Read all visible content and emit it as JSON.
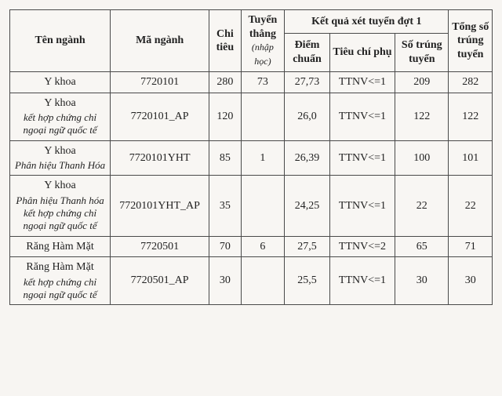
{
  "headers": {
    "name": "Tên ngành",
    "code": "Mã ngành",
    "quota": "Chi tiêu",
    "direct": "Tuyển thẳng",
    "direct_sub": "(nhập học)",
    "round1": "Kết quả xét tuyển đợt 1",
    "score": "Điểm chuẩn",
    "criteria": "Tiêu chí phụ",
    "passed": "Số trúng tuyển",
    "total": "Tổng số trúng tuyển"
  },
  "rows": [
    {
      "name_main": "Y khoa",
      "name_sub": "",
      "code": "7720101",
      "quota": "280",
      "direct": "73",
      "score": "27,73",
      "criteria": "TTNV<=1",
      "passed": "209",
      "total": "282"
    },
    {
      "name_main": "Y khoa",
      "name_sub": "kết hợp chứng chỉ ngoại ngữ quốc tế",
      "code": "7720101_AP",
      "quota": "120",
      "direct": "",
      "score": "26,0",
      "criteria": "TTNV<=1",
      "passed": "122",
      "total": "122"
    },
    {
      "name_main": "Y khoa",
      "name_sub": "Phân hiệu Thanh Hóa",
      "code": "7720101YHT",
      "quota": "85",
      "direct": "1",
      "score": "26,39",
      "criteria": "TTNV<=1",
      "passed": "100",
      "total": "101"
    },
    {
      "name_main": "Y khoa",
      "name_sub": "Phân hiệu Thanh hóa kết hợp chứng chỉ ngoại ngữ quốc tế",
      "code": "7720101YHT_AP",
      "quota": "35",
      "direct": "",
      "score": "24,25",
      "criteria": "TTNV<=1",
      "passed": "22",
      "total": "22"
    },
    {
      "name_main": "Răng Hàm Mặt",
      "name_sub": "",
      "code": "7720501",
      "quota": "70",
      "direct": "6",
      "score": "27,5",
      "criteria": "TTNV<=2",
      "passed": "65",
      "total": "71"
    },
    {
      "name_main": "Răng Hàm Mặt",
      "name_sub": "kết hợp chứng chỉ ngoại ngữ quốc tế",
      "code": "7720501_AP",
      "quota": "30",
      "direct": "",
      "score": "25,5",
      "criteria": "TTNV<=1",
      "passed": "30",
      "total": "30"
    }
  ]
}
